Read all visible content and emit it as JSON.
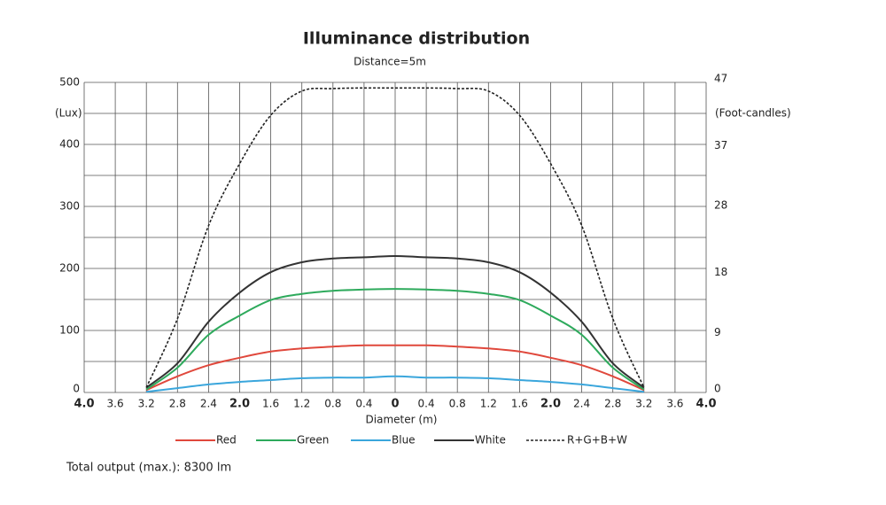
{
  "chart_data": {
    "type": "line",
    "title": "Illuminance distribution",
    "subtitle": "Distance=5m",
    "x_label": "Diameter (m)",
    "y_label": "(Lux)",
    "y2_label": "(Foot-candles)",
    "footer": "Total output (max.): 8300 lm",
    "x": [
      -3.2,
      -2.8,
      -2.4,
      -2.0,
      -1.6,
      -1.2,
      -0.8,
      -0.4,
      0,
      0.4,
      0.8,
      1.2,
      1.6,
      2.0,
      2.4,
      2.8,
      3.2
    ],
    "series": [
      {
        "name": "Red",
        "color": "#e0483c",
        "values": [
          4,
          26,
          44,
          56,
          66,
          71,
          74,
          76,
          76,
          76,
          74,
          71,
          66,
          56,
          44,
          26,
          4
        ]
      },
      {
        "name": "Green",
        "color": "#2eaa5c",
        "values": [
          5,
          40,
          93,
          124,
          149,
          159,
          164,
          166,
          167,
          166,
          164,
          159,
          149,
          124,
          93,
          40,
          5
        ]
      },
      {
        "name": "Blue",
        "color": "#3aa6dc",
        "values": [
          1,
          7,
          13,
          17,
          20,
          23,
          24,
          24,
          26,
          24,
          24,
          23,
          20,
          17,
          13,
          7,
          1
        ]
      },
      {
        "name": "White",
        "color": "#333333",
        "values": [
          8,
          47,
          114,
          161,
          194,
          210,
          216,
          218,
          220,
          218,
          216,
          210,
          194,
          161,
          114,
          47,
          8
        ]
      },
      {
        "name": "R+G+B+W",
        "color": "#222222",
        "dashed": true,
        "values": [
          8,
          119,
          269,
          369,
          447,
          486,
          490,
          491,
          491,
          491,
          490,
          486,
          447,
          369,
          269,
          119,
          8
        ]
      }
    ],
    "xlim": [
      -4,
      4
    ],
    "xticks": [
      {
        "value": -4,
        "label": "4.0"
      },
      {
        "value": -3.6,
        "label": "3.6"
      },
      {
        "value": -3.2,
        "label": "3.2"
      },
      {
        "value": -2.8,
        "label": "2.8"
      },
      {
        "value": -2.4,
        "label": "2.4"
      },
      {
        "value": -2,
        "label": "2.0"
      },
      {
        "value": -1.6,
        "label": "1.6"
      },
      {
        "value": -1.2,
        "label": "1.2"
      },
      {
        "value": -0.8,
        "label": "0.8"
      },
      {
        "value": -0.4,
        "label": "0.4"
      },
      0,
      0.4,
      0.8,
      1.2,
      1.6,
      {
        "value": 2,
        "label": "2.0"
      },
      2.4,
      2.8,
      3.2,
      3.6,
      {
        "value": 4,
        "label": "4.0"
      }
    ],
    "ylim": [
      0,
      500
    ],
    "yticks": [
      0,
      100,
      200,
      300,
      400,
      500
    ],
    "y2lim": [
      0,
      46.5
    ],
    "y2ticks": [
      0,
      9,
      18,
      28,
      37,
      47
    ],
    "grid": true
  }
}
